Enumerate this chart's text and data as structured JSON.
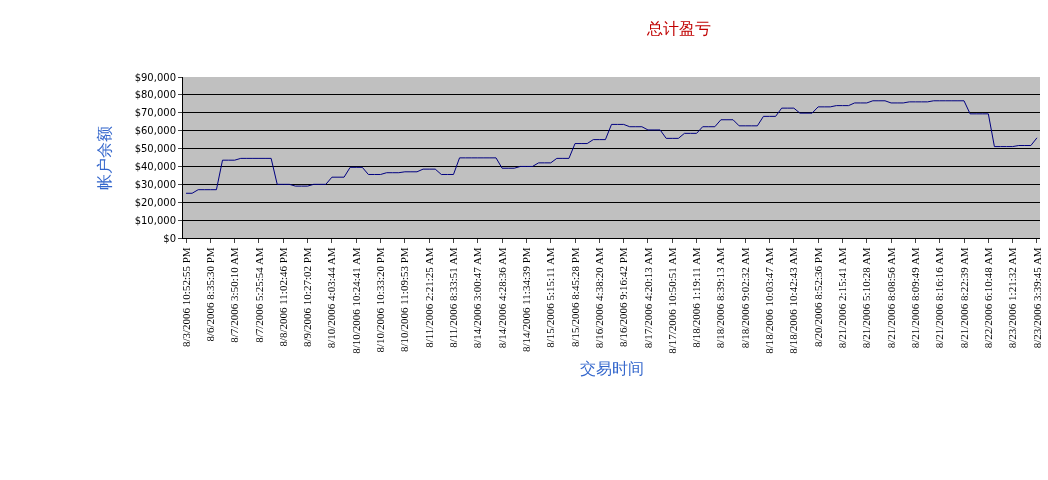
{
  "chart_data": {
    "type": "line",
    "title": "总计盈亏",
    "xlabel": "交易时间",
    "ylabel": "帐户余额",
    "categories": [
      "8/3/2006 10:52:55 PM",
      null,
      null,
      null,
      "8/6/2006 8:35:30 PM",
      null,
      null,
      null,
      "8/7/2006 3:50:10 AM",
      null,
      null,
      null,
      "8/7/2006 5:25:54 AM",
      null,
      null,
      null,
      "8/8/2006 11:02:46 PM",
      null,
      null,
      null,
      "8/9/2006 10:27:02 PM",
      null,
      null,
      null,
      "8/10/2006 4:03:44 AM",
      null,
      null,
      null,
      "8/10/2006 10:24:41 AM",
      null,
      null,
      null,
      "8/10/2006 10:33:20 PM",
      null,
      null,
      null,
      "8/10/2006 11:09:53 PM",
      null,
      null,
      null,
      "8/11/2006 2:21:25 AM",
      null,
      null,
      null,
      "8/11/2006 8:33:51 AM",
      null,
      null,
      null,
      "8/14/2006 3:00:47 AM",
      null,
      null,
      null,
      "8/14/2006 4:28:36 AM",
      null,
      null,
      null,
      "8/14/2006 11:34:39 PM",
      null,
      null,
      null,
      "8/15/2006 5:15:11 AM",
      null,
      null,
      null,
      "8/15/2006 8:45:28 PM",
      null,
      null,
      null,
      "8/16/2006 4:38:20 AM",
      null,
      null,
      null,
      "8/16/2006 9:16:42 PM",
      null,
      null,
      null,
      "8/17/2006 4:20:13 AM",
      null,
      null,
      null,
      "8/17/2006 10:50:51 AM",
      null,
      null,
      null,
      "8/18/2006 1:19:11 AM",
      null,
      null,
      null,
      "8/18/2006 8:39:13 AM",
      null,
      null,
      null,
      "8/18/2006 9:02:32 AM",
      null,
      null,
      null,
      "8/18/2006 10:03:47 AM",
      null,
      null,
      null,
      "8/18/2006 10:42:43 AM",
      null,
      null,
      null,
      "8/20/2006 8:52:36 PM",
      null,
      null,
      null,
      "8/21/2006 2:15:41 AM",
      null,
      null,
      null,
      "8/21/2006 5:10:28 AM",
      null,
      null,
      null,
      "8/21/2006 8:08:56 AM",
      null,
      null,
      null,
      "8/21/2006 8:09:49 AM",
      null,
      null,
      null,
      "8/21/2006 8:16:16 AM",
      null,
      null,
      null,
      "8/21/2006 8:22:39 AM",
      null,
      null,
      null,
      "8/22/2006 6:10:48 AM",
      null,
      null,
      null,
      "8/23/2006 1:21:32 AM",
      null,
      null,
      null,
      "8/23/2006 3:39:45 AM"
    ],
    "series": [
      {
        "color": "#000080",
        "values": [
          25000,
          25000,
          27000,
          27000,
          27000,
          27000,
          43500,
          43500,
          43500,
          44500,
          44500,
          44500,
          44500,
          44500,
          44500,
          30000,
          30000,
          30000,
          29000,
          29000,
          29000,
          30000,
          30000,
          30000,
          34000,
          34000,
          34000,
          39500,
          39500,
          39500,
          35500,
          35500,
          35500,
          36500,
          36500,
          36500,
          37000,
          37000,
          37000,
          38500,
          38500,
          38500,
          35500,
          35500,
          35500,
          44800,
          44800,
          44800,
          44800,
          44800,
          44800,
          44800,
          39000,
          39000,
          39000,
          40000,
          40000,
          40000,
          42000,
          42000,
          42000,
          44500,
          44500,
          44500,
          52800,
          52800,
          52800,
          55000,
          55000,
          55000,
          63500,
          63500,
          63500,
          62200,
          62200,
          62200,
          60400,
          60400,
          60400,
          55700,
          55700,
          55700,
          58500,
          58500,
          58500,
          62200,
          62200,
          62200,
          66100,
          66100,
          66100,
          62700,
          62700,
          62700,
          62700,
          68000,
          68000,
          68000,
          72600,
          72600,
          72600,
          69800,
          69800,
          69800,
          73300,
          73300,
          73300,
          74000,
          74000,
          74000,
          75500,
          75500,
          75500,
          76700,
          76700,
          76700,
          75500,
          75500,
          75500,
          76100,
          76100,
          76100,
          76100,
          76700,
          76700,
          76700,
          76700,
          76700,
          76700,
          69400,
          69400,
          69400,
          69400,
          51100,
          51100,
          51100,
          51100,
          51700,
          51700,
          51700,
          56000
        ]
      }
    ],
    "ylim": [
      0,
      90000
    ],
    "yticks": [
      {
        "value": 0,
        "label": "$0"
      },
      {
        "value": 10000,
        "label": "$10,000"
      },
      {
        "value": 20000,
        "label": "$20,000"
      },
      {
        "value": 30000,
        "label": "$30,000"
      },
      {
        "value": 40000,
        "label": "$40,000"
      },
      {
        "value": 50000,
        "label": "$50,000"
      },
      {
        "value": 60000,
        "label": "$60,000"
      },
      {
        "value": 70000,
        "label": "$70,000"
      },
      {
        "value": 80000,
        "label": "$80,000"
      },
      {
        "value": 90000,
        "label": "$90,000"
      }
    ],
    "grid": "y",
    "marker": "none",
    "line_style": "solid"
  }
}
